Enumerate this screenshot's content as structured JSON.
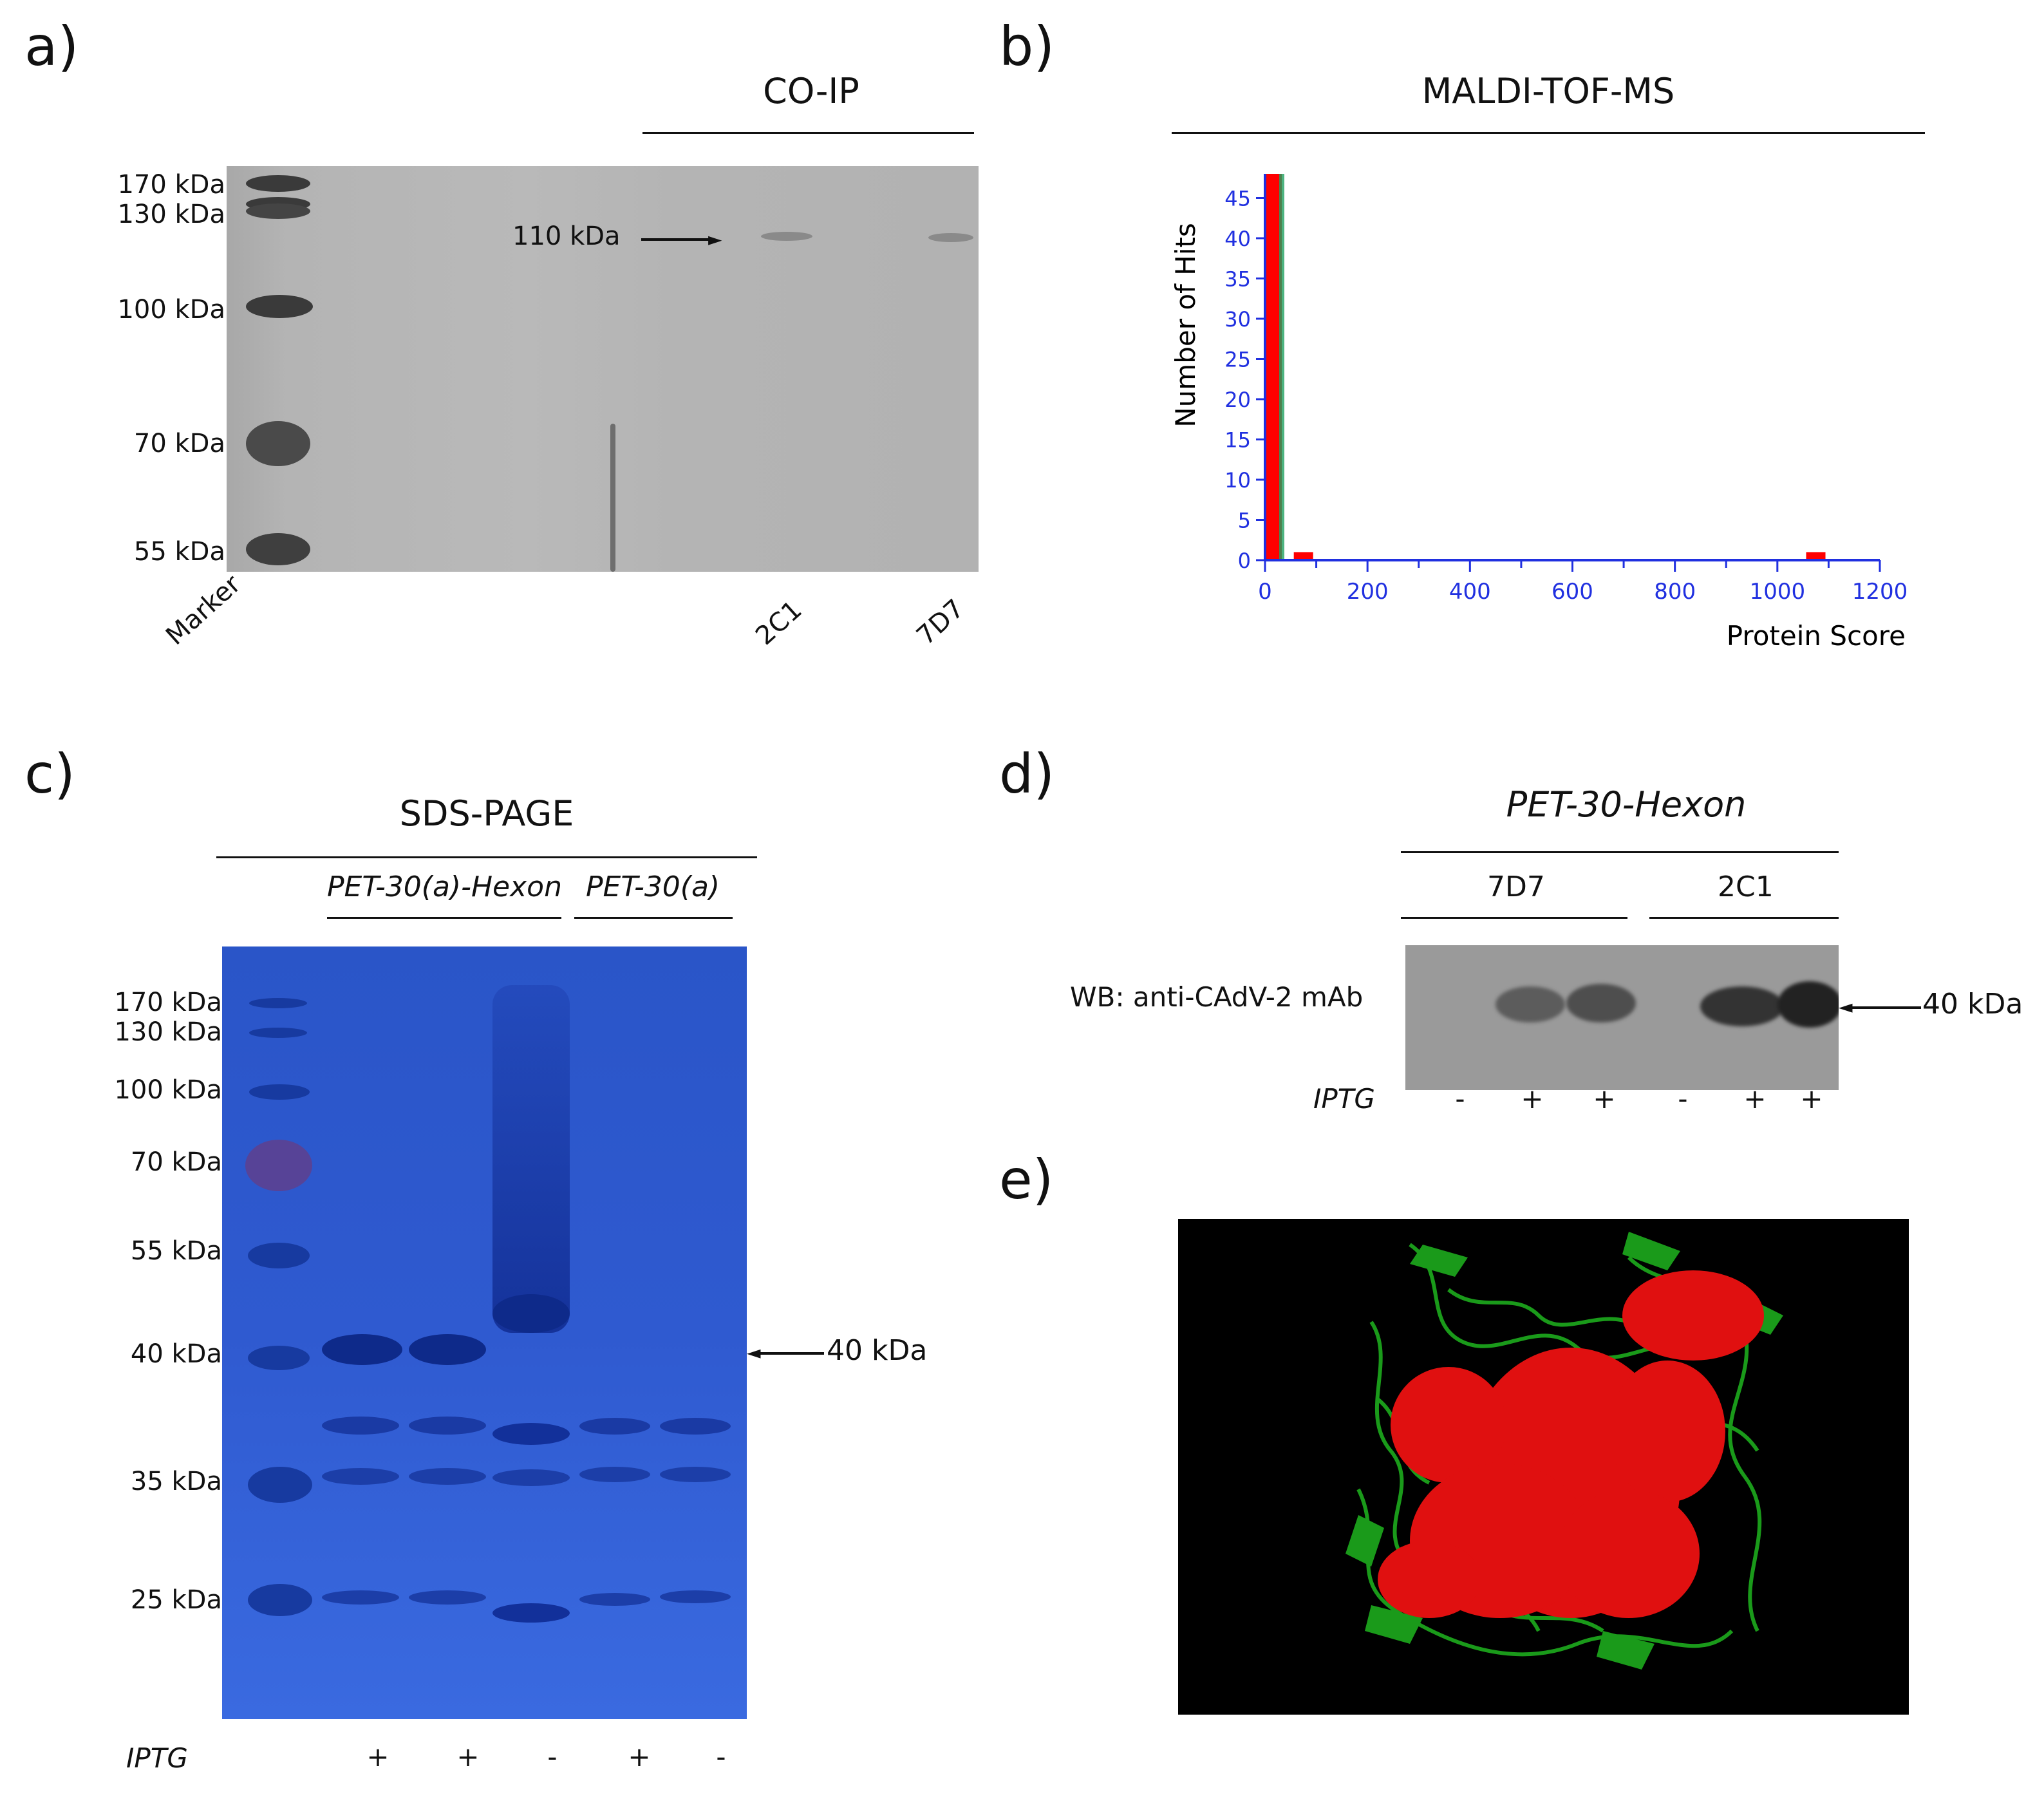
{
  "panel_a": {
    "letter": "a)",
    "header": "CO-IP",
    "markers": [
      "170 kDa",
      "130 kDa",
      "100 kDa",
      "70 kDa",
      "55 kDa"
    ],
    "band_label": "110 kDa",
    "lanes": [
      "Marker",
      "2C1",
      "7D7"
    ]
  },
  "panel_b": {
    "letter": "b)",
    "header": "MALDI-TOF-MS"
  },
  "chart_data": {
    "type": "bar",
    "xlabel": "Protein Score",
    "ylabel": "Number of Hits",
    "xlim": [
      0,
      1200
    ],
    "ylim": [
      0,
      48
    ],
    "x_ticks": [
      0,
      200,
      400,
      600,
      800,
      1000,
      1200
    ],
    "y_ticks": [
      0,
      5,
      10,
      15,
      20,
      25,
      30,
      35,
      40,
      45
    ],
    "bars": [
      {
        "x": 5,
        "y": 48
      },
      {
        "x": 75,
        "y": 1
      },
      {
        "x": 1075,
        "y": 1
      }
    ],
    "grid": false,
    "colors": {
      "axis": "#2030e0",
      "bar": "#ff0000",
      "threshold": "#20a060"
    }
  },
  "panel_c": {
    "letter": "c)",
    "header": "SDS-PAGE",
    "group1": "PET-30(a)-Hexon",
    "group2": "PET-30(a)",
    "markers": [
      "170 kDa",
      "130 kDa",
      "100 kDa",
      "70 kDa",
      "55 kDa",
      "40 kDa",
      "35 kDa",
      "25 kDa"
    ],
    "arrow_label": "40 kDa",
    "iptg_label": "IPTG",
    "iptg": [
      "+",
      "+",
      "-",
      "+",
      "-"
    ]
  },
  "panel_d": {
    "letter": "d)",
    "header": "PET-30-Hexon",
    "group1": "7D7",
    "group2": "2C1",
    "wb_label": "WB: anti-CAdV-2 mAb",
    "arrow_label": "40 kDa",
    "iptg_label": "IPTG",
    "iptg": [
      "-",
      "+",
      "+",
      "-",
      "+",
      "+"
    ]
  },
  "panel_e": {
    "letter": "e)",
    "colors": {
      "background": "#000000",
      "ribbon": "#1a9a1a",
      "spheres": "#e01010"
    }
  }
}
